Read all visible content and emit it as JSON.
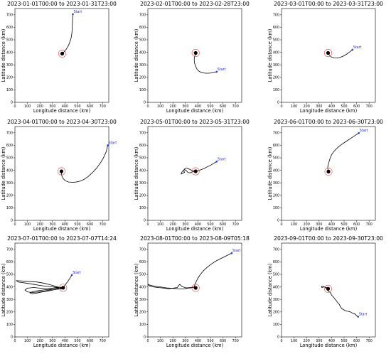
{
  "figure": {
    "start_label": "Start",
    "colors": {
      "track": "#000000",
      "start_marker": "#1f3fd1",
      "start_text": "#2222cc",
      "ring": "#e05050",
      "axes": "#000000"
    }
  },
  "chart_data": [
    {
      "type": "line",
      "title": "2023-01-01T00:00 to 2023-01-31T23:00",
      "xlabel": "Longitude distance (km)",
      "ylabel": "Latitude distance (km)",
      "xlim": [
        0,
        750
      ],
      "ylim": [
        0,
        750
      ],
      "xticks": [
        0,
        100,
        200,
        300,
        400,
        500,
        600,
        700
      ],
      "yticks": [
        0,
        100,
        200,
        300,
        400,
        500,
        600,
        700
      ],
      "grid": false,
      "start": [
        463,
        705
      ],
      "ring_center": [
        378,
        390
      ],
      "track": [
        [
          463,
          705
        ],
        [
          461,
          670
        ],
        [
          460,
          630
        ],
        [
          458,
          590
        ],
        [
          455,
          550
        ],
        [
          450,
          520
        ],
        [
          445,
          500
        ],
        [
          438,
          480
        ],
        [
          430,
          460
        ],
        [
          420,
          440
        ],
        [
          410,
          425
        ],
        [
          398,
          410
        ],
        [
          388,
          398
        ],
        [
          380,
          392
        ],
        [
          372,
          386
        ],
        [
          375,
          395
        ],
        [
          382,
          388
        ],
        [
          378,
          382
        ],
        [
          372,
          392
        ],
        [
          384,
          396
        ],
        [
          378,
          390
        ]
      ]
    },
    {
      "type": "line",
      "title": "2023-02-01T00:00 to 2023-02-28T23:00",
      "xlabel": "Longitude distance (km)",
      "ylabel": "Latitude distance (km)",
      "xlim": [
        0,
        750
      ],
      "ylim": [
        0,
        750
      ],
      "xticks": [
        0,
        100,
        200,
        300,
        400,
        500,
        600,
        700
      ],
      "yticks": [
        0,
        100,
        200,
        300,
        400,
        500,
        600,
        700
      ],
      "grid": false,
      "start": [
        550,
        245
      ],
      "ring_center": [
        382,
        395
      ],
      "track": [
        [
          550,
          245
        ],
        [
          520,
          238
        ],
        [
          490,
          233
        ],
        [
          460,
          233
        ],
        [
          430,
          238
        ],
        [
          410,
          248
        ],
        [
          395,
          262
        ],
        [
          385,
          280
        ],
        [
          377,
          300
        ],
        [
          372,
          322
        ],
        [
          370,
          345
        ],
        [
          373,
          365
        ],
        [
          378,
          380
        ],
        [
          384,
          392
        ],
        [
          378,
          398
        ],
        [
          386,
          402
        ],
        [
          380,
          390
        ],
        [
          388,
          395
        ],
        [
          382,
          395
        ]
      ]
    },
    {
      "type": "line",
      "title": "2023-03-01T00:00 to 2023-03-31T23:00",
      "xlabel": "Longitude distance (km)",
      "ylabel": "Latitude distance (km)",
      "xlim": [
        0,
        750
      ],
      "ylim": [
        0,
        750
      ],
      "xticks": [
        0,
        100,
        200,
        300,
        400,
        500,
        600,
        700
      ],
      "yticks": [
        0,
        100,
        200,
        300,
        400,
        500,
        600,
        700
      ],
      "grid": false,
      "start": [
        567,
        420
      ],
      "ring_center": [
        372,
        395
      ],
      "track": [
        [
          567,
          420
        ],
        [
          545,
          403
        ],
        [
          520,
          385
        ],
        [
          495,
          370
        ],
        [
          470,
          360
        ],
        [
          445,
          355
        ],
        [
          420,
          356
        ],
        [
          400,
          362
        ],
        [
          385,
          375
        ],
        [
          376,
          388
        ],
        [
          370,
          396
        ],
        [
          378,
          392
        ],
        [
          372,
          400
        ],
        [
          366,
          392
        ],
        [
          372,
          395
        ]
      ]
    },
    {
      "type": "line",
      "title": "2023-04-01T00:00 to 2023-04-30T23:00",
      "xlabel": "Longitude distance (km)",
      "ylabel": "Latitude distance (km)",
      "xlim": [
        0,
        750
      ],
      "ylim": [
        0,
        750
      ],
      "xticks": [
        0,
        100,
        200,
        300,
        400,
        500,
        600,
        700
      ],
      "yticks": [
        0,
        100,
        200,
        300,
        400,
        500,
        600,
        700
      ],
      "grid": false,
      "start": [
        742,
        600
      ],
      "ring_center": [
        372,
        392
      ],
      "track": [
        [
          742,
          600
        ],
        [
          730,
          550
        ],
        [
          710,
          505
        ],
        [
          685,
          462
        ],
        [
          655,
          420
        ],
        [
          620,
          382
        ],
        [
          585,
          350
        ],
        [
          550,
          326
        ],
        [
          510,
          310
        ],
        [
          470,
          304
        ],
        [
          430,
          306
        ],
        [
          400,
          318
        ],
        [
          382,
          338
        ],
        [
          374,
          358
        ],
        [
          372,
          376
        ],
        [
          372,
          392
        ],
        [
          366,
          398
        ],
        [
          376,
          386
        ],
        [
          370,
          392
        ],
        [
          372,
          392
        ]
      ]
    },
    {
      "type": "line",
      "title": "2023-05-01T00:00 to 2023-05-31T23:00",
      "xlabel": "Longitude distance (km)",
      "ylabel": "Latitude distance (km)",
      "xlim": [
        0,
        750
      ],
      "ylim": [
        0,
        750
      ],
      "xticks": [
        0,
        100,
        200,
        300,
        400,
        500,
        600,
        700
      ],
      "yticks": [
        0,
        100,
        200,
        300,
        400,
        500,
        600,
        700
      ],
      "grid": false,
      "start": [
        550,
        470
      ],
      "ring_center": [
        382,
        392
      ],
      "track": [
        [
          550,
          470
        ],
        [
          525,
          455
        ],
        [
          500,
          440
        ],
        [
          475,
          428
        ],
        [
          450,
          415
        ],
        [
          425,
          405
        ],
        [
          405,
          398
        ],
        [
          388,
          393
        ],
        [
          370,
          395
        ],
        [
          350,
          400
        ],
        [
          330,
          410
        ],
        [
          310,
          418
        ],
        [
          292,
          410
        ],
        [
          285,
          395
        ],
        [
          295,
          385
        ],
        [
          280,
          378
        ],
        [
          265,
          370
        ],
        [
          275,
          392
        ],
        [
          295,
          405
        ],
        [
          310,
          395
        ],
        [
          320,
          382
        ],
        [
          340,
          380
        ],
        [
          360,
          390
        ],
        [
          382,
          392
        ]
      ]
    },
    {
      "type": "line",
      "title": "2023-06-01T00:00 to 2023-06-30T23:00",
      "xlabel": "Longitude distance (km)",
      "ylabel": "Latitude distance (km)",
      "xlim": [
        0,
        750
      ],
      "ylim": [
        0,
        750
      ],
      "xticks": [
        0,
        100,
        200,
        300,
        400,
        500,
        600,
        700
      ],
      "yticks": [
        0,
        100,
        200,
        300,
        400,
        500,
        600,
        700
      ],
      "grid": false,
      "start": [
        618,
        698
      ],
      "ring_center": [
        375,
        390
      ],
      "track": [
        [
          618,
          698
        ],
        [
          590,
          680
        ],
        [
          560,
          660
        ],
        [
          530,
          640
        ],
        [
          500,
          620
        ],
        [
          470,
          600
        ],
        [
          445,
          578
        ],
        [
          420,
          553
        ],
        [
          400,
          525
        ],
        [
          388,
          495
        ],
        [
          378,
          462
        ],
        [
          370,
          432
        ],
        [
          370,
          410
        ],
        [
          375,
          395
        ],
        [
          370,
          385
        ],
        [
          380,
          388
        ],
        [
          372,
          396
        ],
        [
          375,
          390
        ]
      ]
    },
    {
      "type": "line",
      "title": "2023-07-01T00:00 to 2023-07-07T14:24",
      "xlabel": "Longitude distance (km)",
      "ylabel": "Latitude distance (km)",
      "xlim": [
        0,
        750
      ],
      "ylim": [
        0,
        750
      ],
      "xticks": [
        0,
        100,
        200,
        300,
        400,
        500,
        600,
        700
      ],
      "yticks": [
        0,
        100,
        200,
        300,
        400,
        500,
        600,
        700
      ],
      "grid": false,
      "start": [
        455,
        495
      ],
      "ring_center": [
        385,
        393
      ],
      "track": [
        [
          455,
          495
        ],
        [
          440,
          470
        ],
        [
          420,
          440
        ],
        [
          400,
          415
        ],
        [
          385,
          393
        ],
        [
          340,
          400
        ],
        [
          290,
          415
        ],
        [
          230,
          430
        ],
        [
          170,
          440
        ],
        [
          100,
          445
        ],
        [
          40,
          448
        ],
        [
          10,
          450
        ],
        [
          30,
          438
        ],
        [
          90,
          430
        ],
        [
          150,
          420
        ],
        [
          200,
          412
        ],
        [
          250,
          405
        ],
        [
          300,
          400
        ],
        [
          350,
          396
        ],
        [
          385,
          393
        ],
        [
          340,
          390
        ],
        [
          290,
          378
        ],
        [
          240,
          368
        ],
        [
          190,
          360
        ],
        [
          140,
          355
        ],
        [
          100,
          360
        ],
        [
          80,
          375
        ],
        [
          100,
          390
        ],
        [
          150,
          395
        ],
        [
          200,
          390
        ],
        [
          250,
          385
        ],
        [
          300,
          390
        ],
        [
          340,
          395
        ],
        [
          380,
          385
        ],
        [
          330,
          380
        ],
        [
          280,
          370
        ],
        [
          230,
          362
        ],
        [
          180,
          352
        ],
        [
          140,
          345
        ],
        [
          120,
          352
        ],
        [
          150,
          365
        ],
        [
          200,
          372
        ],
        [
          250,
          378
        ],
        [
          300,
          382
        ],
        [
          350,
          388
        ],
        [
          385,
          393
        ]
      ]
    },
    {
      "type": "line",
      "title": "2023-08-01T00:00 to 2023-08-09T05:18",
      "xlabel": "Longitude distance (km)",
      "ylabel": "Latitude distance (km)",
      "xlim": [
        0,
        750
      ],
      "ylim": [
        0,
        750
      ],
      "xticks": [
        0,
        100,
        200,
        300,
        400,
        500,
        600,
        700
      ],
      "yticks": [
        0,
        100,
        200,
        300,
        400,
        500,
        600,
        700
      ],
      "grid": false,
      "start": [
        670,
        670
      ],
      "ring_center": [
        382,
        392
      ],
      "track": [
        [
          670,
          670
        ],
        [
          630,
          650
        ],
        [
          590,
          630
        ],
        [
          550,
          610
        ],
        [
          510,
          585
        ],
        [
          475,
          558
        ],
        [
          445,
          530
        ],
        [
          420,
          500
        ],
        [
          400,
          470
        ],
        [
          385,
          440
        ],
        [
          375,
          415
        ],
        [
          370,
          400
        ],
        [
          340,
          395
        ],
        [
          305,
          392
        ],
        [
          275,
          402
        ],
        [
          255,
          420
        ],
        [
          245,
          410
        ],
        [
          235,
          395
        ],
        [
          200,
          390
        ],
        [
          170,
          385
        ],
        [
          140,
          388
        ],
        [
          110,
          392
        ],
        [
          80,
          395
        ],
        [
          55,
          398
        ],
        [
          30,
          402
        ],
        [
          10,
          410
        ],
        [
          0,
          420
        ],
        [
          25,
          412
        ],
        [
          60,
          405
        ],
        [
          100,
          400
        ],
        [
          150,
          392
        ],
        [
          200,
          388
        ],
        [
          250,
          385
        ],
        [
          290,
          385
        ],
        [
          320,
          390
        ],
        [
          350,
          393
        ],
        [
          370,
          398
        ],
        [
          382,
          392
        ]
      ]
    },
    {
      "type": "line",
      "title": "2023-09-01T00:00 to 2023-09-30T23:00",
      "xlabel": "Longitude distance (km)",
      "ylabel": "Latitude distance (km)",
      "xlim": [
        0,
        750
      ],
      "ylim": [
        0,
        750
      ],
      "xticks": [
        0,
        100,
        200,
        300,
        400,
        500,
        600,
        700
      ],
      "yticks": [
        0,
        100,
        200,
        300,
        400,
        500,
        600,
        700
      ],
      "grid": false,
      "start": [
        612,
        162
      ],
      "ring_center": [
        372,
        385
      ],
      "track": [
        [
          612,
          162
        ],
        [
          600,
          170
        ],
        [
          585,
          185
        ],
        [
          568,
          190
        ],
        [
          550,
          200
        ],
        [
          530,
          205
        ],
        [
          510,
          210
        ],
        [
          495,
          218
        ],
        [
          480,
          228
        ],
        [
          470,
          245
        ],
        [
          460,
          262
        ],
        [
          445,
          280
        ],
        [
          430,
          300
        ],
        [
          415,
          318
        ],
        [
          400,
          335
        ],
        [
          390,
          355
        ],
        [
          375,
          365
        ],
        [
          360,
          385
        ],
        [
          345,
          400
        ],
        [
          320,
          405
        ],
        [
          322,
          395
        ],
        [
          340,
          400
        ],
        [
          360,
          395
        ],
        [
          372,
          385
        ],
        [
          380,
          395
        ],
        [
          372,
          385
        ]
      ]
    }
  ]
}
